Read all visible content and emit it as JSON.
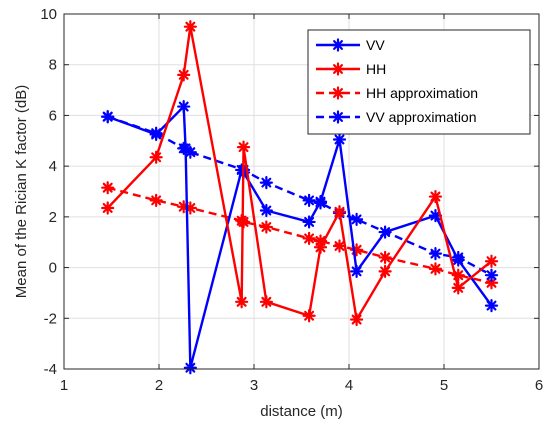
{
  "chart_data": {
    "type": "line",
    "xlabel": "distance (m)",
    "ylabel": "Mean of the Rician K factor (dB)",
    "xlim": [
      1,
      6
    ],
    "ylim": [
      -4,
      10
    ],
    "xticks": [
      1,
      2,
      3,
      4,
      5,
      6
    ],
    "yticks": [
      -4,
      -2,
      0,
      2,
      4,
      6,
      8,
      10
    ],
    "grid": true,
    "legend_position": "top-right",
    "series": [
      {
        "name": "VV",
        "color": "#0000ff",
        "line_style": "solid",
        "x": [
          1.46,
          1.97,
          2.26,
          2.28,
          2.33,
          2.87,
          2.89,
          3.13,
          3.58,
          3.7,
          3.9,
          4.08,
          4.38,
          4.91,
          5.15,
          5.5
        ],
        "y": [
          5.95,
          5.25,
          6.35,
          4.7,
          -3.95,
          3.85,
          3.75,
          2.25,
          1.8,
          2.6,
          5.05,
          -0.15,
          1.4,
          2.05,
          0.3,
          -1.5
        ]
      },
      {
        "name": "HH",
        "color": "#ff0000",
        "line_style": "solid",
        "x": [
          1.46,
          1.97,
          2.26,
          2.33,
          2.87,
          2.89,
          3.13,
          3.58,
          3.7,
          3.9,
          4.08,
          4.38,
          4.91,
          5.15,
          5.5
        ],
        "y": [
          2.35,
          4.35,
          7.6,
          9.5,
          -1.35,
          4.75,
          -1.35,
          -1.9,
          0.8,
          2.2,
          -2.05,
          -0.15,
          2.8,
          -0.8,
          0.25
        ]
      },
      {
        "name": "HH approximation",
        "color": "#ff0000",
        "line_style": "dashed",
        "x": [
          1.46,
          1.97,
          2.26,
          2.33,
          2.87,
          2.89,
          3.13,
          3.58,
          3.7,
          3.9,
          4.08,
          4.38,
          4.91,
          5.15,
          5.5
        ],
        "y": [
          3.15,
          2.65,
          2.4,
          2.35,
          1.85,
          1.8,
          1.6,
          1.15,
          1.05,
          0.85,
          0.7,
          0.4,
          -0.05,
          -0.3,
          -0.6
        ]
      },
      {
        "name": "VV approximation",
        "color": "#0000ff",
        "line_style": "dashed",
        "x": [
          1.46,
          1.97,
          2.26,
          2.33,
          2.89,
          3.13,
          3.58,
          3.7,
          3.9,
          4.08,
          4.91,
          5.15,
          5.5
        ],
        "y": [
          5.95,
          5.3,
          4.7,
          4.55,
          3.85,
          3.35,
          2.65,
          2.55,
          2.15,
          1.9,
          0.55,
          0.4,
          -0.3
        ]
      }
    ]
  }
}
